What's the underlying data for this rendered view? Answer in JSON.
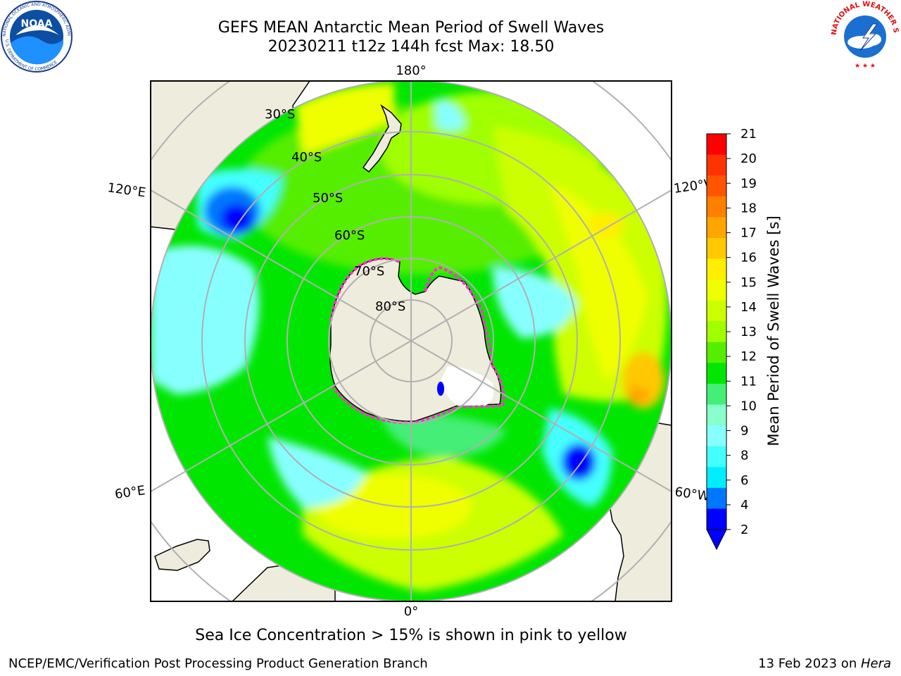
{
  "header": {
    "title_line1": "GEFS MEAN Antarctic Mean Period of Swell Waves",
    "title_line2": "20230211 t12z 144h fcst   Max: 18.50"
  },
  "logos": {
    "noaa_text": "NOAA",
    "noaa_ring_text": "NATIONAL OCEANIC AND ATMOSPHERIC ADMINISTRATION",
    "noaa_ring_text_bottom": "U.S. DEPARTMENT OF COMMERCE",
    "nws_ring_text": "NATIONAL WEATHER SERVICE"
  },
  "map": {
    "projection": "south-polar-stereographic",
    "longitude_labels": [
      "180°",
      "120°E",
      "120°W",
      "60°E",
      "60°W",
      "0°"
    ],
    "latitude_labels": [
      "30°S",
      "40°S",
      "50°S",
      "60°S",
      "70°S",
      "80°S"
    ],
    "colors": {
      "land": "#eeecdc",
      "grid": "#b0b0b0"
    }
  },
  "colorbar": {
    "label": "Mean Period of Swell Waves [s]",
    "ticks": [
      "21",
      "20",
      "19",
      "18",
      "17",
      "16",
      "15",
      "14",
      "13",
      "12",
      "11",
      "10",
      "9",
      "8",
      "6",
      "4",
      "2"
    ],
    "colors_top_to_bottom": [
      "#ff0000",
      "#ff3300",
      "#ff5500",
      "#ff7f00",
      "#ffa500",
      "#ffc800",
      "#ffee00",
      "#f0ff00",
      "#ccff00",
      "#a0ff00",
      "#55ee00",
      "#00e600",
      "#44ee77",
      "#88ffcc",
      "#88ffff",
      "#44ffff",
      "#00eeff",
      "#0077ff",
      "#0000ff"
    ],
    "extend_color": "#0000ff"
  },
  "notes": {
    "sea_ice": "Sea Ice Concentration > 15% is shown in pink to yellow"
  },
  "footer": {
    "left": "NCEP/EMC/Verification Post Processing Product Generation Branch",
    "right_prefix": "13 Feb 2023 on ",
    "right_machine": "Hera"
  }
}
